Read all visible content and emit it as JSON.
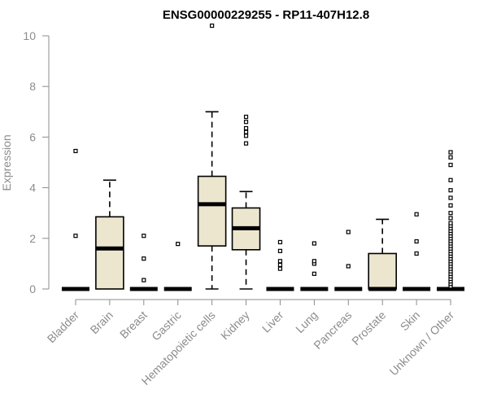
{
  "chart_data": {
    "type": "box",
    "title": "ENSG00000229255 - RP11-407H12.8",
    "xlabel": "",
    "ylabel": "Expression",
    "ylim": [
      0,
      10
    ],
    "yticks": [
      0,
      2,
      4,
      6,
      8,
      10
    ],
    "box_fill": "#ede6cf",
    "axis_color": "#8c8c8c",
    "categories": [
      "Bladder",
      "Brain",
      "Breast",
      "Gastric",
      "Hematopoietic cells",
      "Kidney",
      "Liver",
      "Lung",
      "Pancreas",
      "Prostate",
      "Skin",
      "Unknown / Other"
    ],
    "boxes": [
      {
        "min": 0,
        "q1": 0,
        "median": 0,
        "q3": 0,
        "max": 0,
        "outliers": [
          2.1,
          5.45
        ]
      },
      {
        "min": 0,
        "q1": 0,
        "median": 1.6,
        "q3": 2.85,
        "max": 4.3,
        "outliers": []
      },
      {
        "min": 0,
        "q1": 0,
        "median": 0,
        "q3": 0,
        "max": 0,
        "outliers": [
          0.35,
          1.2,
          2.1
        ]
      },
      {
        "min": 0,
        "q1": 0,
        "median": 0,
        "q3": 0,
        "max": 0,
        "outliers": [
          1.78
        ]
      },
      {
        "min": 0,
        "q1": 1.7,
        "median": 3.35,
        "q3": 4.45,
        "max": 7.0,
        "outliers": [
          10.4
        ]
      },
      {
        "min": 0,
        "q1": 1.55,
        "median": 2.4,
        "q3": 3.2,
        "max": 3.85,
        "outliers": [
          5.75,
          6.05,
          6.2,
          6.35,
          6.6,
          6.8
        ]
      },
      {
        "min": 0,
        "q1": 0,
        "median": 0,
        "q3": 0,
        "max": 0,
        "outliers": [
          0.8,
          0.95,
          1.1,
          1.5,
          1.85
        ]
      },
      {
        "min": 0,
        "q1": 0,
        "median": 0,
        "q3": 0,
        "max": 0,
        "outliers": [
          0.6,
          1.0,
          1.1,
          1.8
        ]
      },
      {
        "min": 0,
        "q1": 0,
        "median": 0,
        "q3": 0,
        "max": 0,
        "outliers": [
          0.9,
          2.25
        ]
      },
      {
        "min": 0,
        "q1": 0,
        "median": 0,
        "q3": 1.4,
        "max": 2.75,
        "outliers": []
      },
      {
        "min": 0,
        "q1": 0,
        "median": 0,
        "q3": 0,
        "max": 0,
        "outliers": [
          1.4,
          1.88,
          2.95
        ]
      },
      {
        "min": 0,
        "q1": 0,
        "median": 0,
        "q3": 0,
        "max": 0,
        "outliers": [
          0.1,
          0.2,
          0.3,
          0.4,
          0.5,
          0.6,
          0.7,
          0.8,
          0.9,
          1.0,
          1.1,
          1.2,
          1.3,
          1.4,
          1.5,
          1.6,
          1.7,
          1.8,
          1.9,
          2.0,
          2.1,
          2.2,
          2.3,
          2.4,
          2.5,
          2.6,
          2.8,
          3.0,
          3.3,
          3.6,
          3.9,
          4.3,
          4.9,
          5.2,
          5.4
        ]
      }
    ]
  }
}
